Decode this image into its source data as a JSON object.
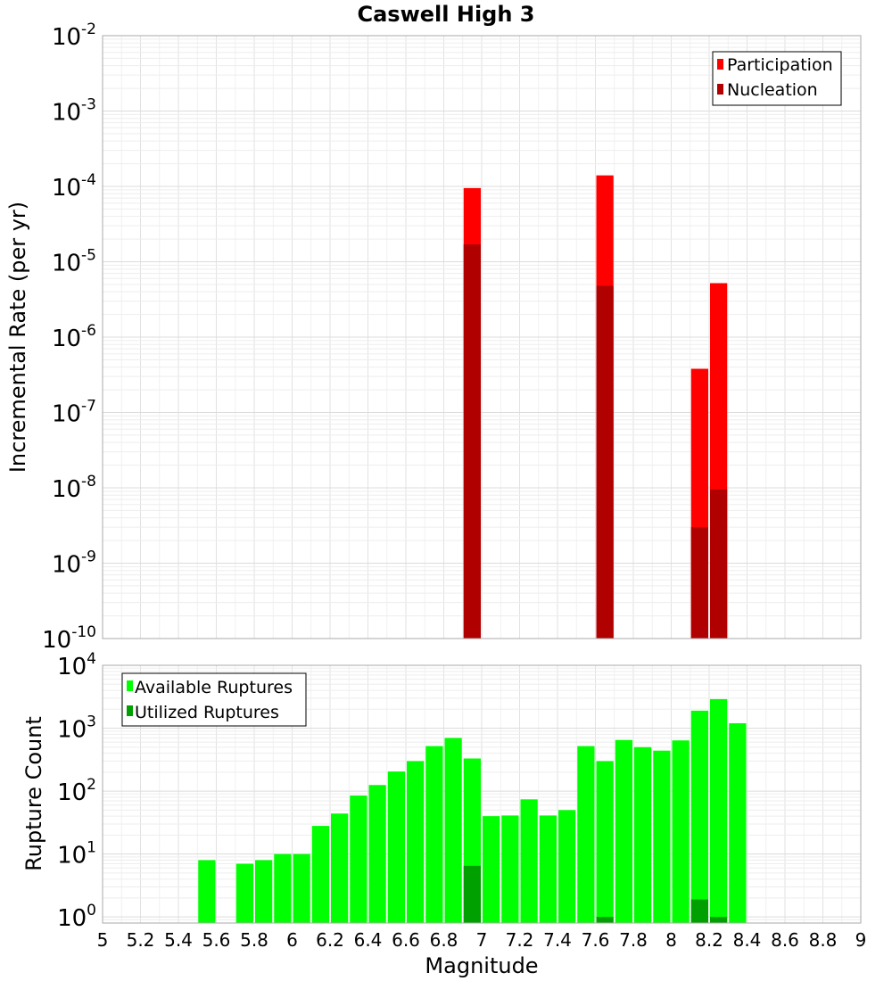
{
  "title": "Caswell High 3",
  "chart_data": [
    {
      "type": "bar",
      "panel": "rate",
      "xlabel": "Magnitude",
      "ylabel": "Incremental Rate (per yr)",
      "yscale": "log",
      "xlim": [
        5,
        9
      ],
      "ylim": [
        1e-10,
        0.01
      ],
      "x_ticks": [
        "5",
        "5.2",
        "5.4",
        "5.6",
        "5.8",
        "6",
        "6.2",
        "6.4",
        "6.6",
        "6.8",
        "7",
        "7.2",
        "7.4",
        "7.6",
        "7.8",
        "8",
        "8.2",
        "8.4",
        "8.6",
        "8.8",
        "9"
      ],
      "y_tick_exponents": [
        "-2",
        "-3",
        "-4",
        "-5",
        "-6",
        "-7",
        "-8",
        "-9",
        "-10"
      ],
      "y_tick_base": "10",
      "bin_width": 0.1,
      "legend": {
        "position": "top-right",
        "entries": [
          "Participation",
          "Nucleation"
        ]
      },
      "series": [
        {
          "name": "Participation",
          "color": "#ff0000",
          "x": [
            6.95,
            7.65,
            8.15,
            8.25
          ],
          "values": [
            9.5e-05,
            0.00014,
            3.8e-07,
            5.2e-06
          ]
        },
        {
          "name": "Nucleation",
          "color": "#b00000",
          "x": [
            6.95,
            7.65,
            8.15,
            8.25
          ],
          "values": [
            1.7e-05,
            4.8e-06,
            3e-09,
            9.5e-09
          ]
        }
      ]
    },
    {
      "type": "bar",
      "panel": "count",
      "xlabel": "Magnitude",
      "ylabel": "Rupture Count",
      "yscale": "log",
      "xlim": [
        5,
        9
      ],
      "ylim": [
        0.8,
        10000
      ],
      "x_ticks": [
        "5",
        "5.2",
        "5.4",
        "5.6",
        "5.8",
        "6",
        "6.2",
        "6.4",
        "6.6",
        "6.8",
        "7",
        "7.2",
        "7.4",
        "7.6",
        "7.8",
        "8",
        "8.2",
        "8.4",
        "8.6",
        "8.8",
        "9"
      ],
      "y_tick_exponents": [
        "4",
        "3",
        "2",
        "1",
        "0"
      ],
      "y_tick_base": "10",
      "bin_width": 0.1,
      "legend": {
        "position": "top-left",
        "entries": [
          "Available Ruptures",
          "Utilized Ruptures"
        ]
      },
      "series": [
        {
          "name": "Available Ruptures",
          "color": "#00ff00",
          "x": [
            5.55,
            5.75,
            5.85,
            5.95,
            6.05,
            6.15,
            6.25,
            6.35,
            6.45,
            6.55,
            6.65,
            6.75,
            6.85,
            6.95,
            7.05,
            7.15,
            7.25,
            7.35,
            7.45,
            7.55,
            7.65,
            7.75,
            7.85,
            7.95,
            8.05,
            8.15,
            8.25,
            8.35
          ],
          "values": [
            8,
            7,
            8,
            10,
            10,
            28,
            44,
            85,
            125,
            205,
            300,
            520,
            700,
            330,
            40,
            41,
            74,
            41,
            50,
            520,
            300,
            650,
            500,
            440,
            640,
            1900,
            2900,
            1200
          ]
        },
        {
          "name": "Utilized Ruptures",
          "color": "#00a000",
          "x": [
            6.95,
            7.65,
            8.15,
            8.25
          ],
          "values": [
            6.5,
            1,
            1.9,
            1
          ]
        }
      ]
    }
  ]
}
